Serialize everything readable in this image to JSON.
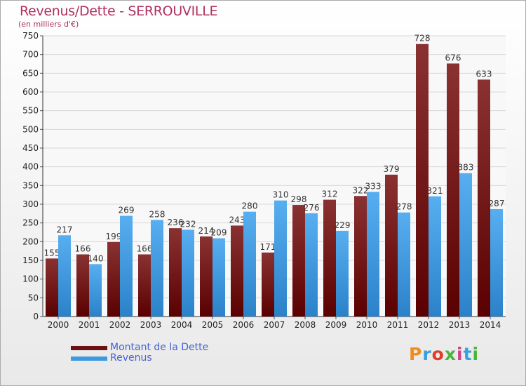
{
  "header": {
    "title": "Revenus/Dette - SERROUVILLE",
    "subtitle": "(en milliers d'€)"
  },
  "legend": {
    "items": [
      {
        "label": "Montant de la Dette",
        "color": "#6b1111"
      },
      {
        "label": "Revenus",
        "color": "#3b9ae0"
      }
    ]
  },
  "logo": {
    "text": "Proxiti",
    "colors": [
      "#f28a1c",
      "#3aa0dd",
      "#e13b2b",
      "#4bb43c",
      "#d13f8a",
      "#3aa0dd",
      "#4bb43c"
    ]
  },
  "chart_data": {
    "type": "bar",
    "title": "Revenus/Dette - SERROUVILLE",
    "ylabel": "(en milliers d'€)",
    "categories": [
      "2000",
      "2001",
      "2002",
      "2003",
      "2004",
      "2005",
      "2006",
      "2007",
      "2008",
      "2009",
      "2010",
      "2011",
      "2012",
      "2013",
      "2014"
    ],
    "series": [
      {
        "name": "Montant de la Dette",
        "values": [
          155,
          166,
          199,
          166,
          236,
          214,
          243,
          171,
          298,
          312,
          322,
          379,
          728,
          676,
          633
        ],
        "labels": [
          "155",
          "166",
          "199",
          "166",
          "236",
          "214",
          "243",
          "171",
          "298",
          "312",
          "322",
          "379",
          "728",
          "676",
          "633"
        ]
      },
      {
        "name": "Revenus",
        "values": [
          217,
          140,
          269,
          258,
          232,
          209,
          280,
          310,
          276,
          229,
          333,
          278,
          321,
          383,
          287
        ],
        "labels": [
          "217",
          "140",
          "269",
          "258",
          "232",
          "209",
          "280",
          "310",
          "276",
          "229",
          "333",
          "278",
          "321",
          "383",
          "287"
        ]
      }
    ],
    "ylim": [
      0,
      750
    ],
    "yticks": [
      "0",
      "50",
      "100",
      "150",
      "200",
      "250",
      "300",
      "350",
      "400",
      "450",
      "500",
      "550",
      "600",
      "650",
      "700",
      "750"
    ],
    "grid": true,
    "legend_position": "bottom-left"
  }
}
